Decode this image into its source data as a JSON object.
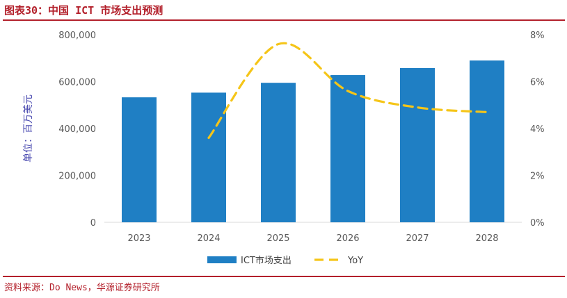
{
  "header": {
    "figure_title": "图表30：中国 ICT 市场支出预测"
  },
  "footer": {
    "source": "资料来源：Do News，华源证券研究所"
  },
  "colors": {
    "bar": "#1f7fc4",
    "line": "#f5c518",
    "title": "#b3202b",
    "axis_label": "#4a4ab0"
  },
  "chart_data": {
    "type": "bar",
    "categories": [
      "2023",
      "2024",
      "2025",
      "2026",
      "2027",
      "2028"
    ],
    "series": [
      {
        "name": "ICT市场支出",
        "type": "bar",
        "axis": "left",
        "values": [
          533000,
          553000,
          595000,
          628000,
          658000,
          690000
        ]
      },
      {
        "name": "YoY",
        "type": "line",
        "axis": "right",
        "style": "dashed",
        "values": [
          null,
          3.6,
          7.6,
          5.6,
          4.9,
          4.7
        ]
      }
    ],
    "ylabel": "单位：百万美元",
    "ylim": [
      0,
      800000
    ],
    "yticks": [
      "0",
      "200,000",
      "400,000",
      "600,000",
      "800,000"
    ],
    "y2lim": [
      0,
      8
    ],
    "y2ticks": [
      "0%",
      "2%",
      "4%",
      "6%",
      "8%"
    ],
    "grid": false,
    "legend": "bottom-center"
  }
}
